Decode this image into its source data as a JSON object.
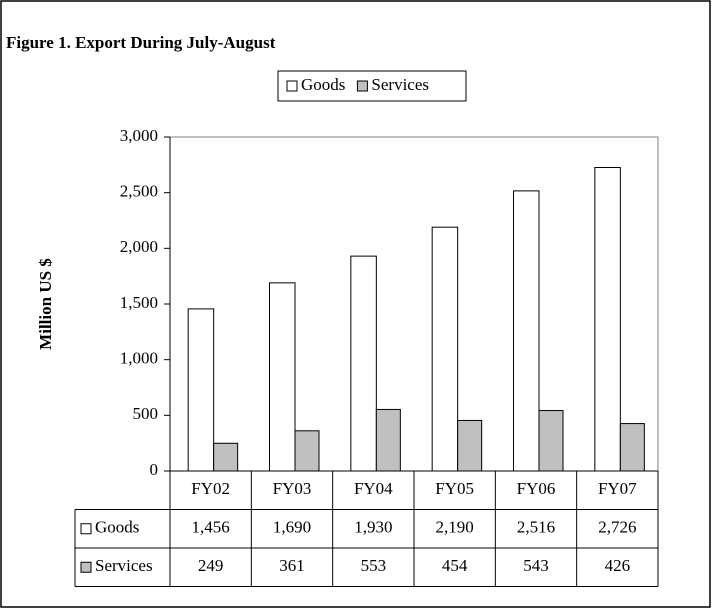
{
  "chart_data": {
    "type": "bar",
    "title": "Figure 1. Export During July-August",
    "y_label": "Million US $",
    "categories": [
      "FY02",
      "FY03",
      "FY04",
      "FY05",
      "FY06",
      "FY07"
    ],
    "series": [
      {
        "name": "Goods",
        "color": "#ffffff",
        "values": [
          1456,
          1690,
          1930,
          2190,
          2516,
          2726
        ],
        "value_labels": [
          "1,456",
          "1,690",
          "1,930",
          "2,190",
          "2,516",
          "2,726"
        ]
      },
      {
        "name": "Services",
        "color": "#c0c0c0",
        "values": [
          249,
          361,
          553,
          454,
          543,
          426
        ]
      }
    ],
    "ylim": [
      0,
      3000
    ],
    "yticks": [
      0,
      500,
      {
        "value": 1000,
        "label": "1,000"
      },
      {
        "value": 1500,
        "label": "1,500"
      },
      {
        "value": 2000,
        "label": "2,000"
      },
      {
        "value": 2500,
        "label": "2,500"
      },
      {
        "value": 3000,
        "label": "3,000"
      }
    ],
    "legend": "top",
    "data_table": true
  }
}
